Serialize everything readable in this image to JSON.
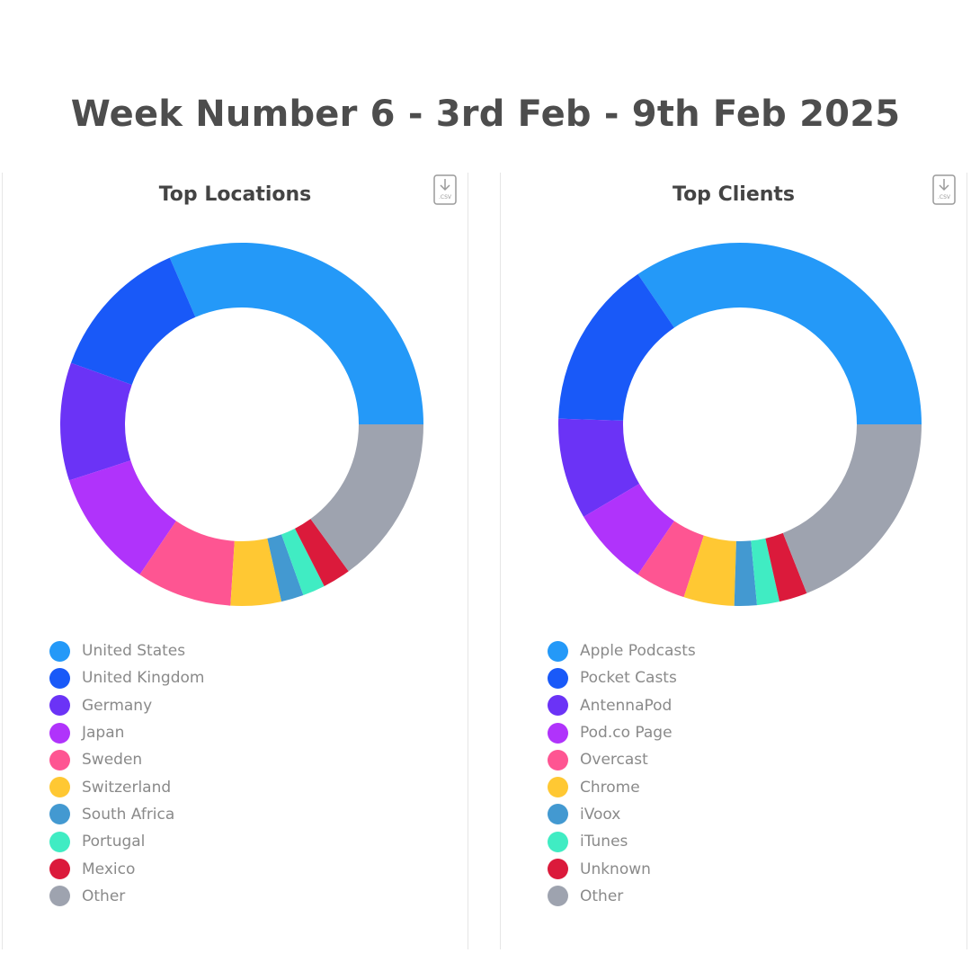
{
  "page": {
    "title": "Week Number 6 - 3rd Feb - 9th Feb 2025"
  },
  "colors": {
    "blue_light": "#2499F8",
    "blue_dark": "#1959F8",
    "violet": "#6B33F6",
    "purple": "#B033FB",
    "pink": "#FE5592",
    "yellow": "#FFC833",
    "steel_blue": "#4399D1",
    "turquoise": "#40ECC3",
    "red": "#DB1A3B",
    "gray": "#9EA3AF"
  },
  "chart_data": [
    {
      "type": "pie",
      "title": "Top Locations",
      "download_icon": "csv-download-icon",
      "labels": [
        "United States",
        "United Kingdom",
        "Germany",
        "Japan",
        "Sweden",
        "Switzerland",
        "South Africa",
        "Portugal",
        "Mexico",
        "Other"
      ],
      "values": [
        31.5,
        13.0,
        10.5,
        10.5,
        8.5,
        4.5,
        2.0,
        2.0,
        2.5,
        15.0
      ],
      "colors": [
        "#2499F8",
        "#1959F8",
        "#6B33F6",
        "#B033FB",
        "#FE5592",
        "#FFC833",
        "#4399D1",
        "#40ECC3",
        "#DB1A3B",
        "#9EA3AF"
      ],
      "legend": "bottom-left"
    },
    {
      "type": "pie",
      "title": "Top Clients",
      "download_icon": "csv-download-icon",
      "labels": [
        "Apple Podcasts",
        "Pocket Casts",
        "AntennaPod",
        "Pod.co Page",
        "Overcast",
        "Chrome",
        "iVoox",
        "iTunes",
        "Unknown",
        "Other"
      ],
      "values": [
        34.5,
        15.0,
        9.0,
        7.0,
        4.5,
        4.5,
        2.0,
        2.0,
        2.5,
        19.0
      ],
      "colors": [
        "#2499F8",
        "#1959F8",
        "#6B33F6",
        "#B033FB",
        "#FE5592",
        "#FFC833",
        "#4399D1",
        "#40ECC3",
        "#DB1A3B",
        "#9EA3AF"
      ],
      "legend": "bottom-left"
    }
  ]
}
